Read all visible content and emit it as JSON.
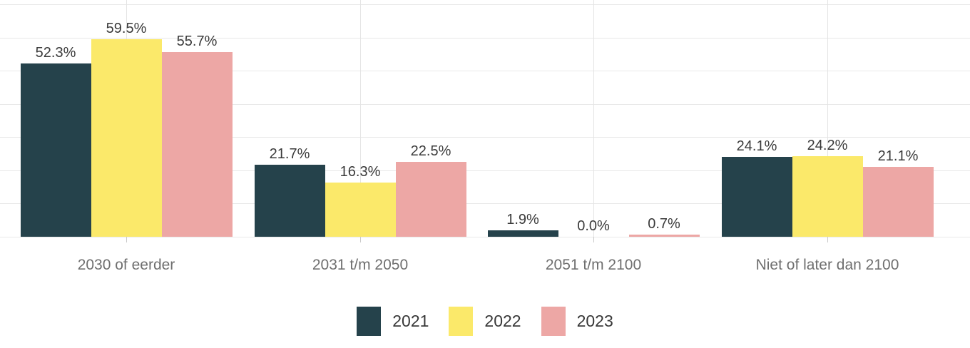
{
  "chart_data": {
    "type": "bar",
    "title": "",
    "xlabel": "",
    "ylabel": "",
    "value_suffix": "%",
    "ylim": [
      0,
      71.3
    ],
    "grid": true,
    "gridline_percents": [
      0,
      10,
      20,
      30,
      40,
      50,
      60,
      70
    ],
    "legend_position": "bottom",
    "categories": [
      "2030 of eerder",
      "2031 t/m 2050",
      "2051 t/m 2100",
      "Niet of later dan 2100"
    ],
    "series": [
      {
        "name": "2021",
        "color": "#25424b",
        "values": [
          52.3,
          21.7,
          1.9,
          24.1
        ]
      },
      {
        "name": "2022",
        "color": "#fbe96a",
        "values": [
          59.5,
          16.3,
          0.0,
          24.2
        ]
      },
      {
        "name": "2023",
        "color": "#eda7a5",
        "values": [
          55.7,
          22.5,
          0.7,
          21.1
        ]
      }
    ],
    "colors": {
      "gridline": "#e8e8e8",
      "value_label": "#3a3a3a",
      "category_label": "#6f6f6f",
      "legend_label": "#383838",
      "background": "#ffffff"
    }
  }
}
